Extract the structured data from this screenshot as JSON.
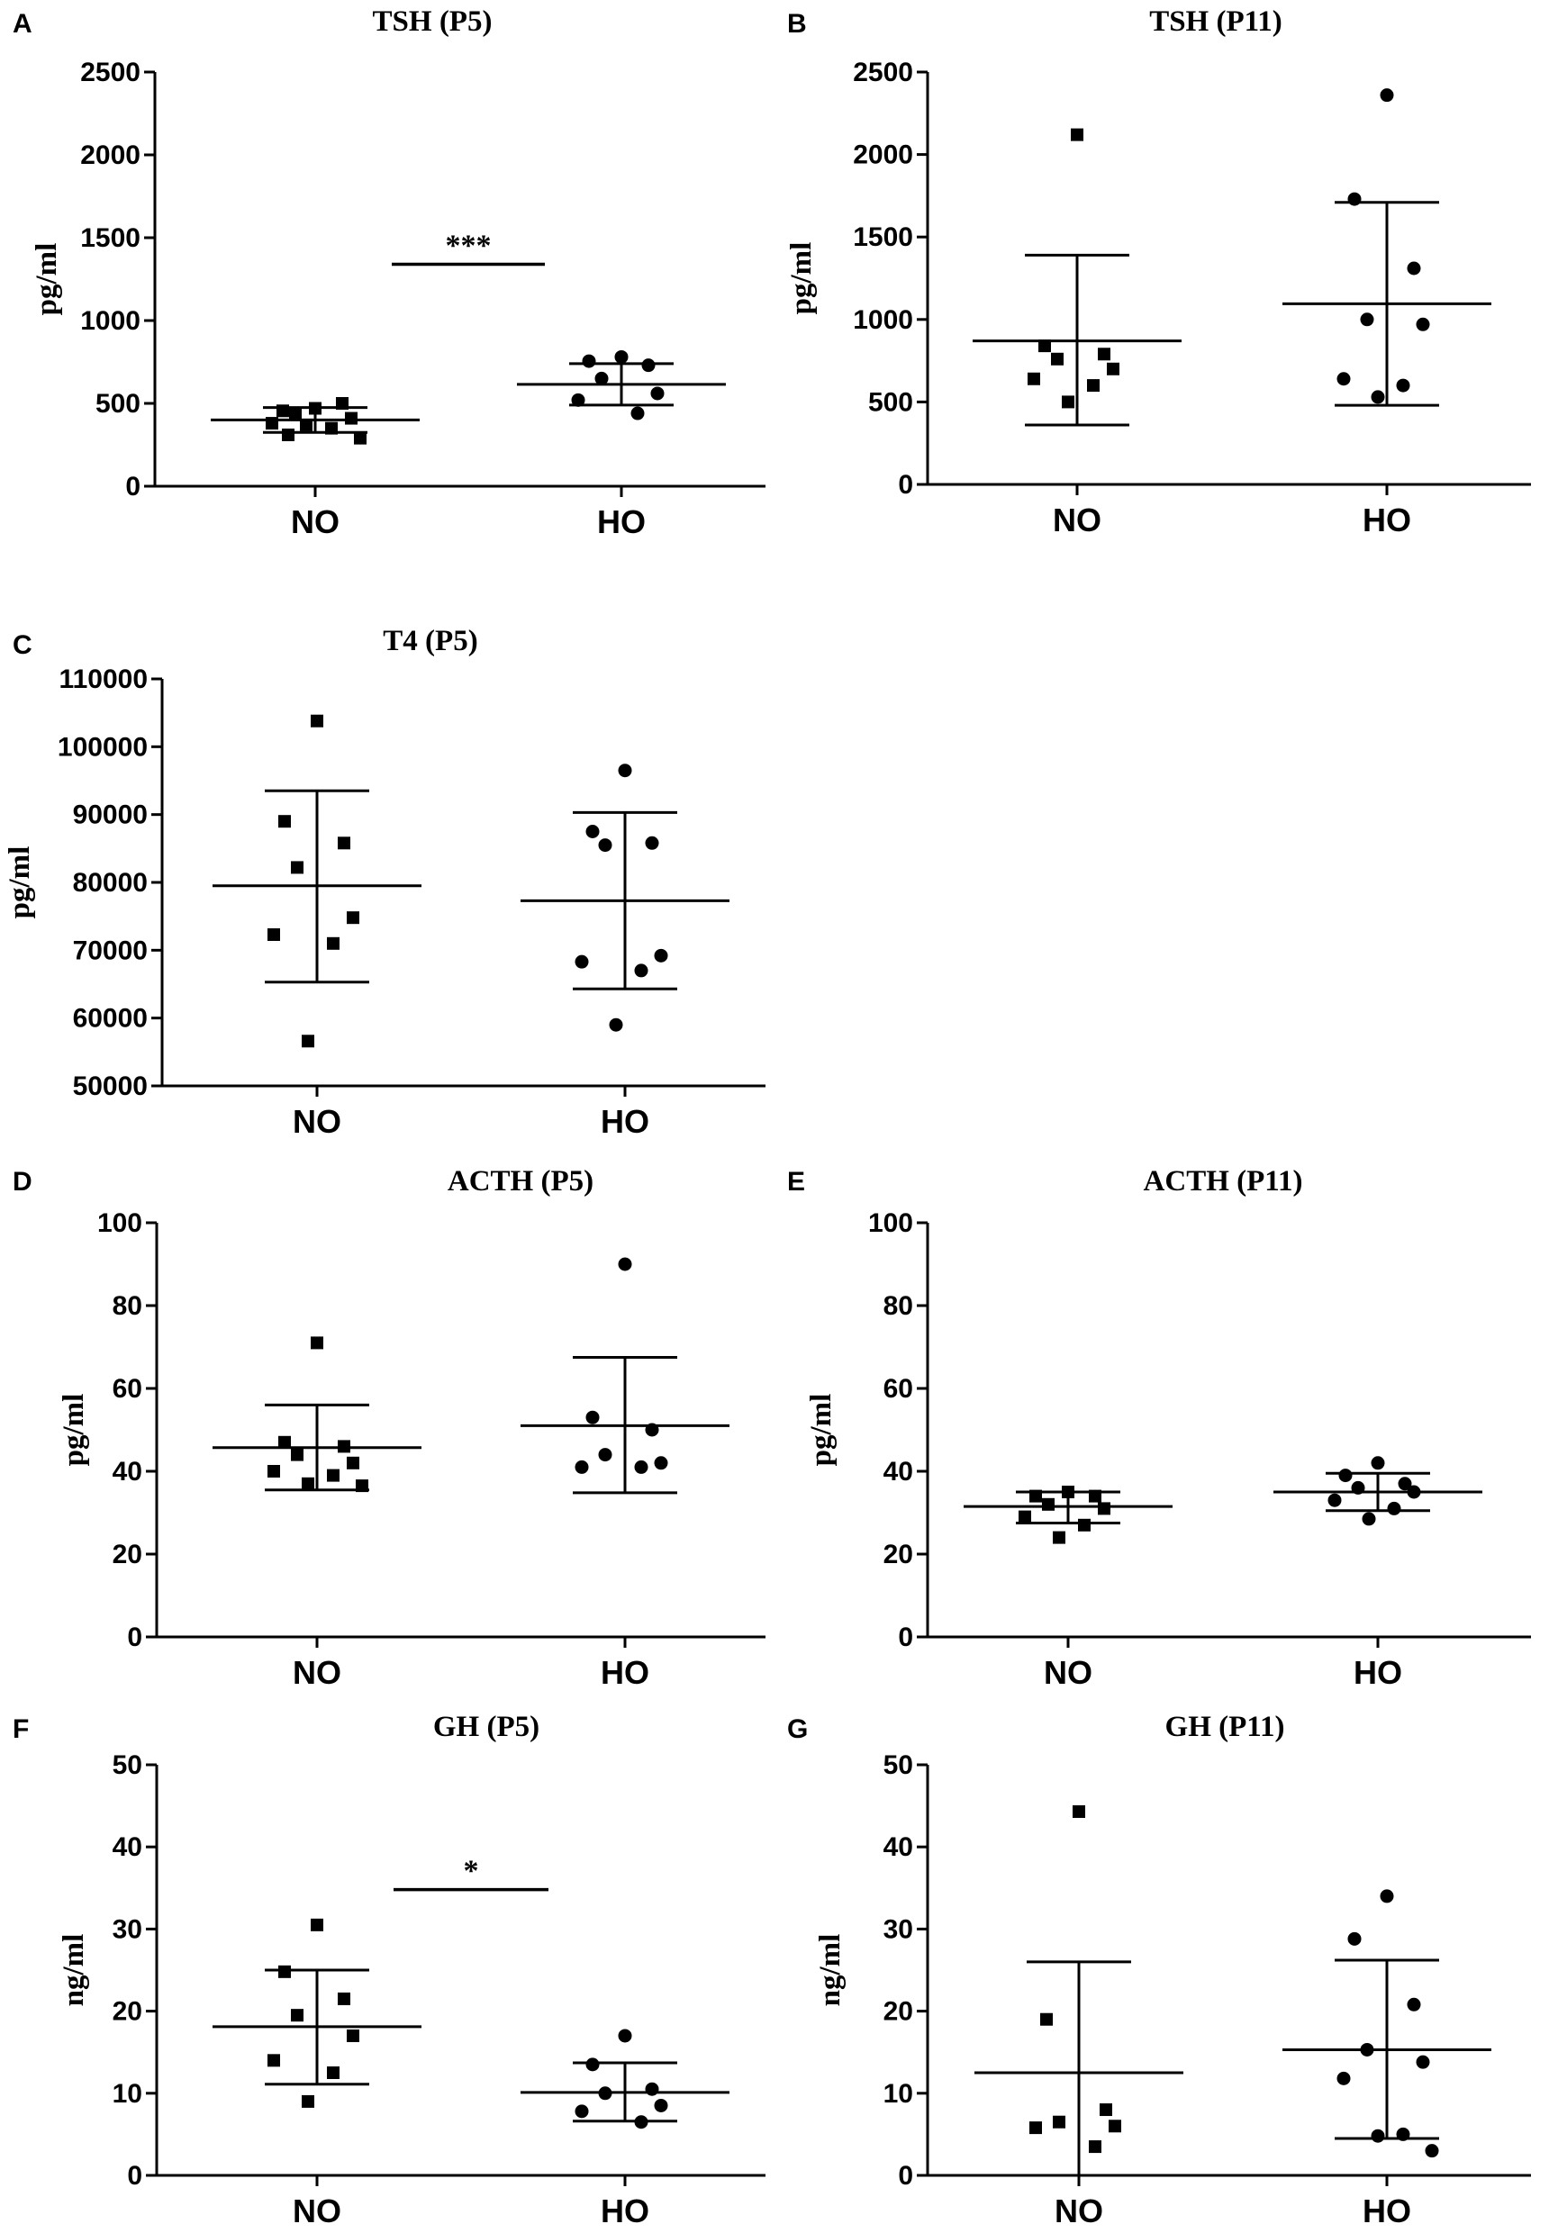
{
  "chart_data": [
    {
      "letter": "A",
      "type": "scatter",
      "title": "TSH (P5)",
      "ylabel": "pg/ml",
      "categories": [
        "NO",
        "HO"
      ],
      "ylim": [
        0,
        2500
      ],
      "yticks": [
        0,
        500,
        1000,
        1500,
        2000,
        2500
      ],
      "groups": [
        {
          "name": "NO",
          "marker": "square",
          "mean": 400,
          "sd_upper": 475,
          "sd_lower": 325,
          "points": [
            470,
            455,
            500,
            440,
            410,
            380,
            350,
            370,
            290,
            310
          ]
        },
        {
          "name": "HO",
          "marker": "circle",
          "mean": 615,
          "sd_upper": 740,
          "sd_lower": 490,
          "points": [
            780,
            755,
            730,
            650,
            560,
            520,
            440
          ]
        }
      ],
      "significance": {
        "label": "***",
        "y": 1340
      }
    },
    {
      "letter": "B",
      "type": "scatter",
      "title": "TSH (P11)",
      "ylabel": "pg/ml",
      "categories": [
        "NO",
        "HO"
      ],
      "ylim": [
        0,
        2500
      ],
      "yticks": [
        0,
        500,
        1000,
        1500,
        2000,
        2500
      ],
      "groups": [
        {
          "name": "NO",
          "marker": "square",
          "mean": 870,
          "sd_upper": 1390,
          "sd_lower": 360,
          "points": [
            2120,
            840,
            790,
            760,
            700,
            640,
            600,
            500
          ]
        },
        {
          "name": "HO",
          "marker": "circle",
          "mean": 1095,
          "sd_upper": 1710,
          "sd_lower": 480,
          "points": [
            2360,
            1730,
            1310,
            1000,
            970,
            640,
            600,
            530
          ]
        }
      ],
      "significance": null
    },
    {
      "letter": "C",
      "type": "scatter",
      "title": "T4 (P5)",
      "ylabel": "pg/ml",
      "categories": [
        "NO",
        "HO"
      ],
      "ylim": [
        50000,
        110000
      ],
      "yticks": [
        50000,
        60000,
        70000,
        80000,
        90000,
        100000,
        110000
      ],
      "groups": [
        {
          "name": "NO",
          "marker": "square",
          "mean": 79500,
          "sd_upper": 93500,
          "sd_lower": 65300,
          "points": [
            103800,
            89000,
            85800,
            82200,
            74800,
            72300,
            71000,
            56600
          ]
        },
        {
          "name": "HO",
          "marker": "circle",
          "mean": 77300,
          "sd_upper": 90300,
          "sd_lower": 64300,
          "points": [
            96500,
            87500,
            85800,
            85500,
            69200,
            68300,
            67000,
            59000
          ]
        }
      ],
      "significance": null
    },
    {
      "letter": "D",
      "type": "scatter",
      "title": "ACTH (P5)",
      "ylabel": "pg/ml",
      "categories": [
        "NO",
        "HO"
      ],
      "ylim": [
        0,
        100
      ],
      "yticks": [
        0,
        20,
        40,
        60,
        80,
        100
      ],
      "groups": [
        {
          "name": "NO",
          "marker": "square",
          "mean": 45.7,
          "sd_upper": 56,
          "sd_lower": 35.5,
          "points": [
            71,
            47,
            46,
            44,
            42,
            40,
            39,
            37,
            36.5
          ]
        },
        {
          "name": "HO",
          "marker": "circle",
          "mean": 51,
          "sd_upper": 67.5,
          "sd_lower": 34.8,
          "points": [
            90,
            53,
            50,
            44,
            42,
            41,
            41
          ]
        }
      ],
      "significance": null
    },
    {
      "letter": "E",
      "type": "scatter",
      "title": "ACTH (P11)",
      "ylabel": "pg/ml",
      "categories": [
        "NO",
        "HO"
      ],
      "ylim": [
        0,
        100
      ],
      "yticks": [
        0,
        20,
        40,
        60,
        80,
        100
      ],
      "groups": [
        {
          "name": "NO",
          "marker": "square",
          "mean": 31.5,
          "sd_upper": 35,
          "sd_lower": 27.5,
          "points": [
            35,
            34,
            34,
            32,
            31,
            29,
            27,
            24
          ]
        },
        {
          "name": "HO",
          "marker": "circle",
          "mean": 35,
          "sd_upper": 39.5,
          "sd_lower": 30.5,
          "points": [
            42,
            39,
            37,
            36,
            35,
            33,
            31,
            28.5
          ]
        }
      ],
      "significance": null
    },
    {
      "letter": "F",
      "type": "scatter",
      "title": "GH (P5)",
      "ylabel": "ng/ml",
      "categories": [
        "NO",
        "HO"
      ],
      "ylim": [
        0,
        50
      ],
      "yticks": [
        0,
        10,
        20,
        30,
        40,
        50
      ],
      "groups": [
        {
          "name": "NO",
          "marker": "square",
          "mean": 18.1,
          "sd_upper": 25,
          "sd_lower": 11.1,
          "points": [
            30.5,
            24.8,
            21.5,
            19.5,
            17,
            14,
            12.5,
            9
          ]
        },
        {
          "name": "HO",
          "marker": "circle",
          "mean": 10.1,
          "sd_upper": 13.7,
          "sd_lower": 6.6,
          "points": [
            17,
            13.5,
            10.5,
            10,
            8.5,
            7.8,
            6.5
          ]
        }
      ],
      "significance": {
        "label": "*",
        "y": 34.8
      }
    },
    {
      "letter": "G",
      "type": "scatter",
      "title": "GH (P11)",
      "ylabel": "ng/ml",
      "categories": [
        "NO",
        "HO"
      ],
      "ylim": [
        0,
        50
      ],
      "yticks": [
        0,
        10,
        20,
        30,
        40,
        50
      ],
      "groups": [
        {
          "name": "NO",
          "marker": "square",
          "mean": 12.5,
          "sd_upper": 26,
          "sd_lower": 0,
          "points": [
            44.3,
            19,
            8,
            6.5,
            6,
            5.8,
            3.5
          ]
        },
        {
          "name": "HO",
          "marker": "circle",
          "mean": 15.3,
          "sd_upper": 26.2,
          "sd_lower": 4.5,
          "points": [
            34,
            28.8,
            20.8,
            15.3,
            13.8,
            11.8,
            5,
            4.8,
            3
          ]
        }
      ],
      "significance": null
    }
  ]
}
